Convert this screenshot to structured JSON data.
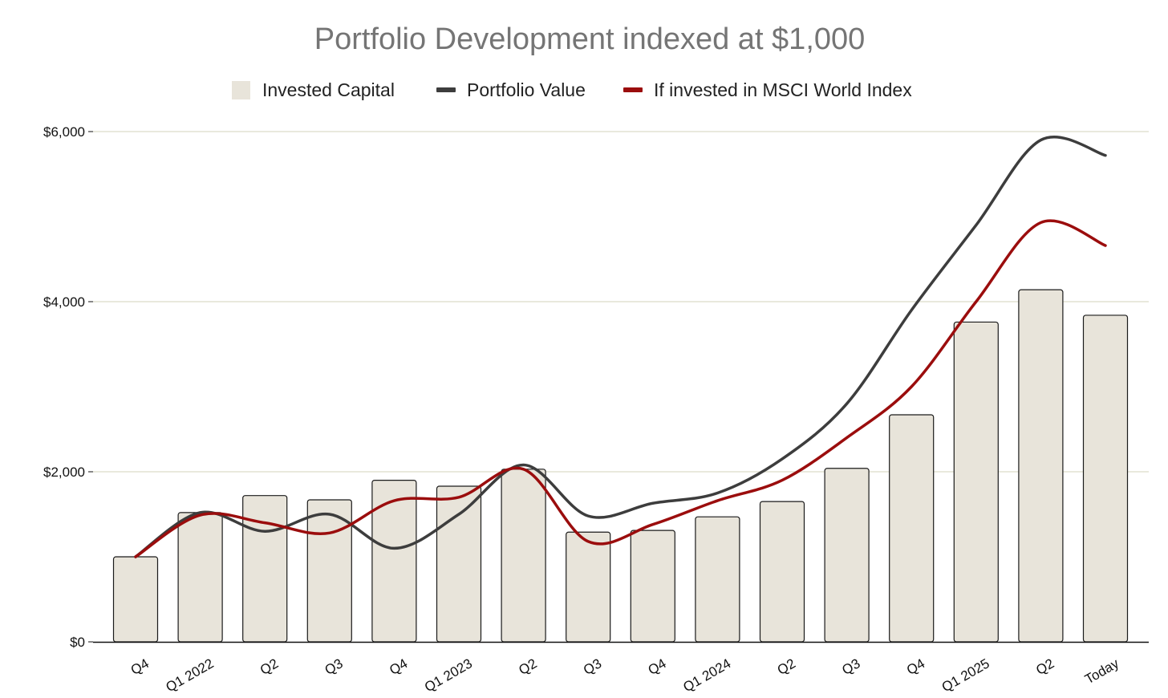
{
  "chart_data": {
    "type": "bar",
    "title": "Portfolio Development indexed at $1,000",
    "categories": [
      "Q4",
      "Q1 2022",
      "Q2",
      "Q3",
      "Q4",
      "Q1 2023",
      "Q2",
      "Q3",
      "Q4",
      "Q1 2024",
      "Q2",
      "Q3",
      "Q4",
      "Q1 2025",
      "Q2",
      "Today"
    ],
    "ylim": [
      0,
      6000
    ],
    "yticks": [
      0,
      2000,
      4000,
      6000
    ],
    "ytick_labels": [
      "$0",
      "$2,000",
      "$4,000",
      "$6,000"
    ],
    "grid": true,
    "legend_position": "top-center",
    "series": [
      {
        "name": "Invested Capital",
        "kind": "bar",
        "color": "#e8e4da",
        "values": [
          1000,
          1520,
          1720,
          1670,
          1900,
          1830,
          2030,
          1290,
          1310,
          1470,
          1650,
          2040,
          2670,
          3760,
          4140,
          3840
        ]
      },
      {
        "name": "Portfolio Value",
        "kind": "line",
        "color": "#3d3d3d",
        "values": [
          1000,
          1520,
          1300,
          1500,
          1100,
          1500,
          2080,
          1480,
          1630,
          1750,
          2150,
          2800,
          3900,
          4900,
          5900,
          5720
        ]
      },
      {
        "name": "If invested in MSCI World Index",
        "kind": "line",
        "color": "#9b0d0d",
        "values": [
          1000,
          1490,
          1400,
          1280,
          1660,
          1700,
          2030,
          1180,
          1380,
          1660,
          1900,
          2400,
          3000,
          4000,
          4930,
          4660
        ]
      }
    ]
  }
}
